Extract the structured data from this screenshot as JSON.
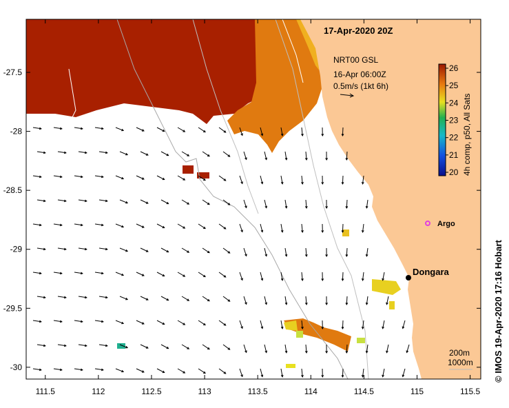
{
  "map": {
    "title": "17-Apr-2020 20Z",
    "current_note": {
      "line1": "NRT00 GSL",
      "line2": "16-Apr 06:00Z",
      "line3": "0.5m/s (1kt 6h)"
    },
    "credit": "© IMOS 19-Apr-2020 17:16 Hobart",
    "colorbar": {
      "label": "4h comp, p50, All Sats",
      "ticks": [
        "26",
        "25",
        "24",
        "23",
        "22",
        "21",
        "20"
      ],
      "min": 20,
      "max": 26
    },
    "x_ticks": [
      "111.5",
      "112",
      "112.5",
      "113",
      "113.5",
      "114",
      "114.5",
      "115",
      "115.5"
    ],
    "y_ticks": [
      "-27.5",
      "-28",
      "-28.5",
      "-29",
      "-29.5",
      "-30"
    ],
    "lon_range": [
      111.32,
      115.6
    ],
    "lat_range": [
      -27.05,
      -30.1
    ],
    "places": [
      {
        "name": "Dongara",
        "lon": 114.93,
        "lat": -29.25
      },
      {
        "name": "Argo",
        "lon": 115.1,
        "lat": -28.8
      }
    ],
    "depth_contours": [
      "200m",
      "1000m"
    ],
    "colors": {
      "land": "#fbc895",
      "sst_warm": "#a82000",
      "sst_mid": "#e07a10",
      "sst_cool": "#e8d020",
      "argo": "#e040e0"
    }
  }
}
